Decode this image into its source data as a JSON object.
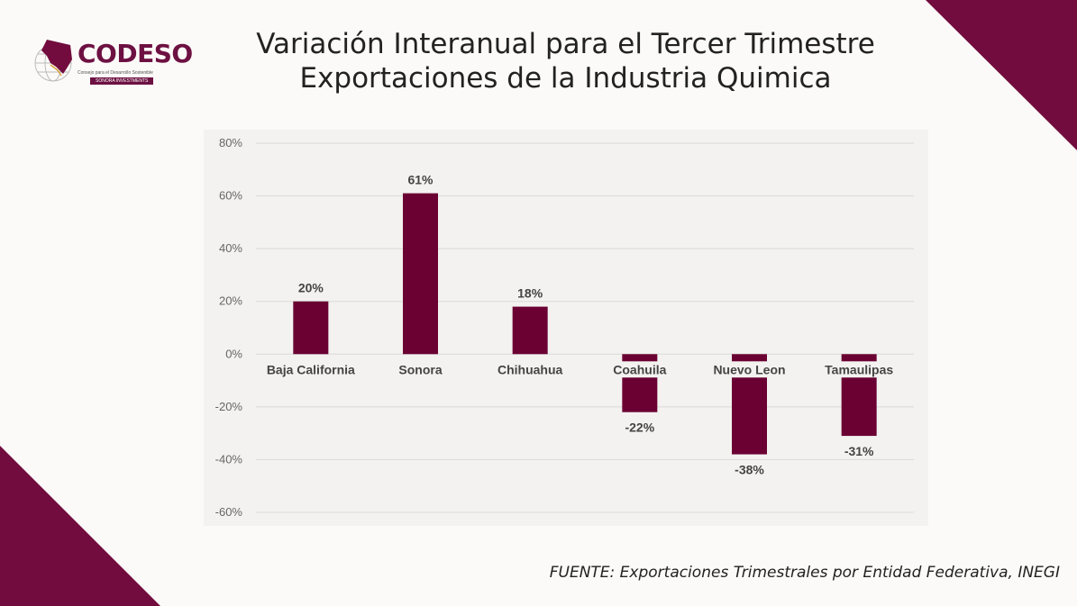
{
  "title": {
    "line1": "Variación Interanual para el Tercer Trimestre",
    "line2": "Exportaciones de la Industria Quimica"
  },
  "logo": {
    "name": "CODESO",
    "subtitle": "Consejo para el Desarrollo Sostenible",
    "badge": "SONORA INVESTMENTS"
  },
  "source": "FUENTE:  Exportaciones Trimestrales por Entidad Federativa, INEGI",
  "colors": {
    "bar": "#6b0033",
    "accent": "#720c3e",
    "grid": "#d9d9d9"
  },
  "chart_data": {
    "type": "bar",
    "title": "Variación Interanual para el Tercer Trimestre Exportaciones de la Industria Quimica",
    "categories": [
      "Baja California",
      "Sonora",
      "Chihuahua",
      "Coahuila",
      "Nuevo Leon",
      "Tamaulipas"
    ],
    "values": [
      20,
      61,
      18,
      -22,
      -38,
      -31
    ],
    "value_labels": [
      "20%",
      "61%",
      "18%",
      "-22%",
      "-38%",
      "-31%"
    ],
    "yticks": [
      80,
      60,
      40,
      20,
      0,
      -20,
      -40,
      -60
    ],
    "ytick_labels": [
      "80%",
      "60%",
      "40%",
      "20%",
      "0%",
      "-20%",
      "-40%",
      "-60%"
    ],
    "ylim": [
      -60,
      80
    ],
    "xlabel": "",
    "ylabel": "",
    "grid": true,
    "legend": "none"
  }
}
